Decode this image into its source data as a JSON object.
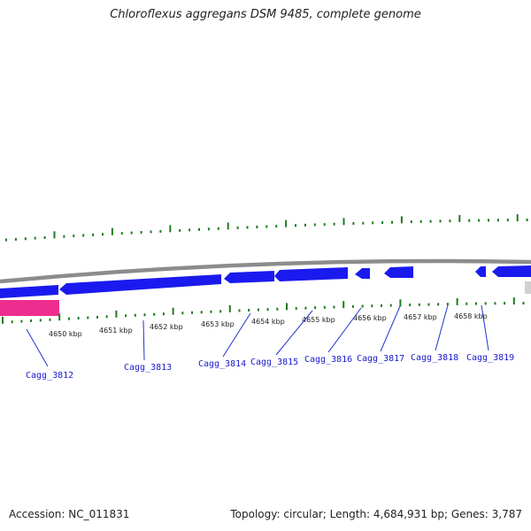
{
  "title": "Chloroflexus aggregans DSM 9485, complete genome",
  "footer": {
    "accession": "Accession: NC_011831",
    "summary": "Topology: circular; Length: 4,684,931 bp; Genes: 3,787"
  },
  "colors": {
    "gene_blue": "#1a1aee",
    "gene_pink": "#ee2d8f",
    "gc_green": "#1f7a1f",
    "backbone": "#8c8c8c",
    "label_blue": "#1a1acc",
    "leader_line": "#2233cc"
  },
  "ruler": {
    "labels": [
      "4650 kbp",
      "4651 kbp",
      "4652 kbp",
      "4653 kbp",
      "4654 kbp",
      "4655 kbp",
      "4656 kbp",
      "4657 kbp",
      "4658 kbp"
    ]
  },
  "genes": [
    {
      "name": "Cagg_3812"
    },
    {
      "name": "Cagg_3813"
    },
    {
      "name": "Cagg_3814"
    },
    {
      "name": "Cagg_3815"
    },
    {
      "name": "Cagg_3816"
    },
    {
      "name": "Cagg_3817"
    },
    {
      "name": "Cagg_3818"
    },
    {
      "name": "Cagg_3819"
    }
  ]
}
